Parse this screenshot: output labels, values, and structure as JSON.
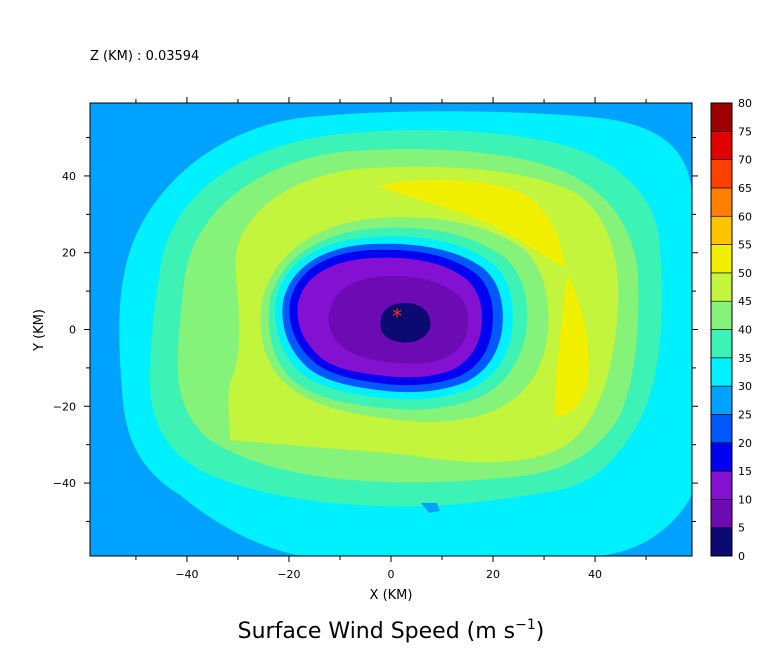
{
  "header": {
    "z_label": "Z (KM) : 0.03594"
  },
  "chart_data": {
    "type": "heatmap",
    "title": "Surface Wind Speed (m s",
    "title_unit_exponent": "−1",
    "title_suffix": ")",
    "xlabel": "X (KM)",
    "ylabel": "Y (KM)",
    "xlim": [
      -59,
      59
    ],
    "ylim": [
      -59,
      59
    ],
    "x_ticks": [
      -40,
      -20,
      0,
      20,
      40
    ],
    "y_ticks": [
      40,
      20,
      0,
      -20,
      -40
    ],
    "center_marker": {
      "x": 1.2,
      "y": 3,
      "symbol": "*",
      "color": "#ff3300"
    },
    "colorbar": {
      "levels": [
        0,
        5,
        10,
        15,
        20,
        25,
        30,
        35,
        40,
        45,
        50,
        55,
        60,
        65,
        70,
        75,
        80
      ],
      "colors": [
        "#0b0a73",
        "#6c0ab4",
        "#8410d2",
        "#0000f0",
        "#0058ff",
        "#00a2ff",
        "#00f0ff",
        "#3cf2b4",
        "#85f27a",
        "#c2f53c",
        "#f0f000",
        "#ffc300",
        "#ff7f00",
        "#ff4100",
        "#e00000",
        "#9e0000"
      ]
    },
    "contour_fill_levels": [
      {
        "min": 25,
        "color": "#00a2ff"
      },
      {
        "min": 30,
        "color": "#00f0ff"
      },
      {
        "min": 35,
        "color": "#3cf2b4"
      },
      {
        "min": 40,
        "color": "#85f27a"
      },
      {
        "min": 45,
        "color": "#c2f53c"
      },
      {
        "min": 50,
        "color": "#f0f000"
      },
      {
        "min": 20,
        "color": "#0058ff"
      },
      {
        "min": 15,
        "color": "#0000f0"
      },
      {
        "min": 10,
        "color": "#8410d2"
      },
      {
        "min": 5,
        "color": "#6c0ab4"
      },
      {
        "min": 0,
        "color": "#0b0a73"
      }
    ]
  }
}
